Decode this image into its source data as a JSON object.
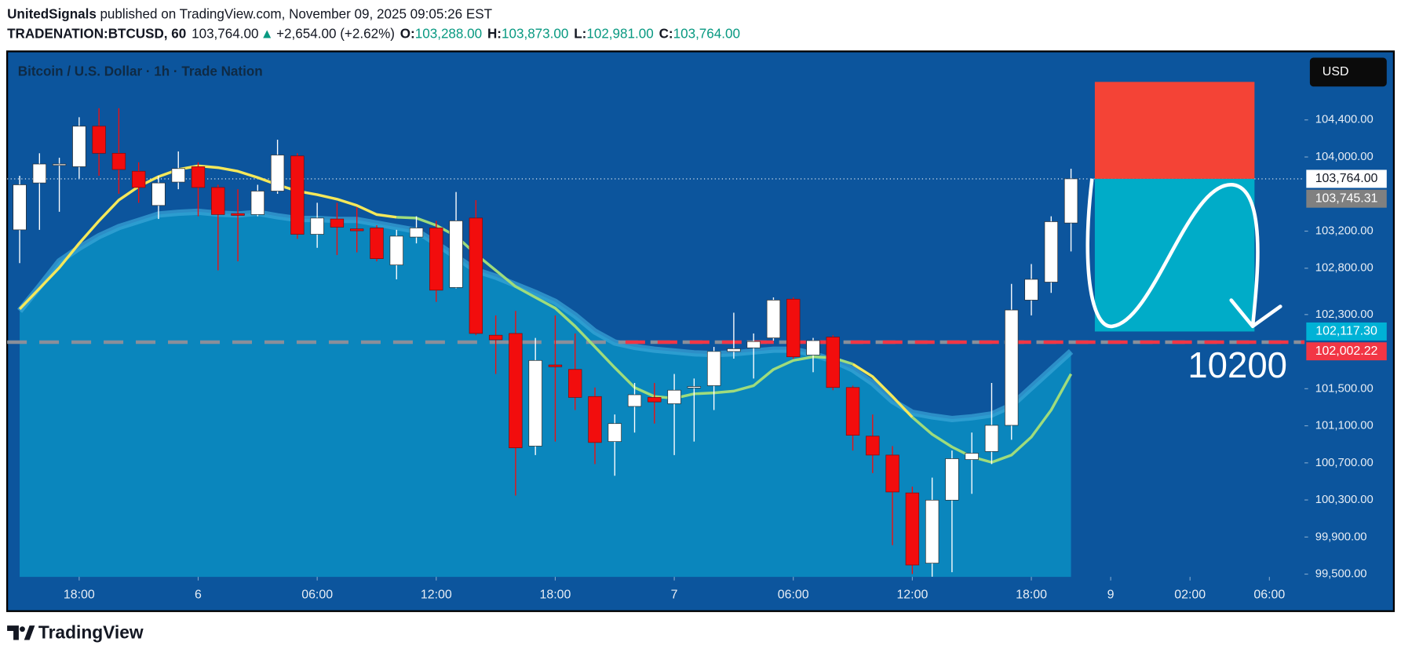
{
  "header": {
    "author": "UnitedSignals",
    "published": "published on TradingView.com, November 09, 2025 09:05:26 EST",
    "symbol": "TRADENATION:BTCUSD, 60",
    "price": "103,764.00",
    "arrow": "▲",
    "change": "+2,654.00 (+2.62%)",
    "ohlc": [
      [
        "O:",
        "103,288.00"
      ],
      [
        "H:",
        "103,873.00"
      ],
      [
        "L:",
        "102,981.00"
      ],
      [
        "C:",
        "103,764.00"
      ]
    ]
  },
  "footer": {
    "brand": "TradingView"
  },
  "chart_data": {
    "type": "candlestick",
    "title": "Bitcoin / U.S. Dollar · 1h · Trade Nation",
    "currency": "USD",
    "xlim": [
      -0.63,
      64.77
    ],
    "ylim": [
      99470,
      105110
    ],
    "xticks": [
      {
        "value": 3,
        "label": "18:00"
      },
      {
        "value": 9,
        "label": "6"
      },
      {
        "value": 15,
        "label": "06:00"
      },
      {
        "value": 21,
        "label": "12:00"
      },
      {
        "value": 27,
        "label": "18:00"
      },
      {
        "value": 33,
        "label": "7"
      },
      {
        "value": 39,
        "label": "06:00"
      },
      {
        "value": 45,
        "label": "12:00"
      },
      {
        "value": 51,
        "label": "18:00"
      },
      {
        "value": 55,
        "label": "9"
      },
      {
        "value": 59,
        "label": "02:00"
      },
      {
        "value": 63,
        "label": "06:00"
      }
    ],
    "yticks": [
      {
        "value": 104400,
        "label": "104,400.00"
      },
      {
        "value": 104000,
        "label": "104,000.00"
      },
      {
        "value": 103200,
        "label": "103,200.00"
      },
      {
        "value": 102800,
        "label": "102,800.00"
      },
      {
        "value": 102300,
        "label": "102,300.00"
      },
      {
        "value": 101500,
        "label": "101,500.00"
      },
      {
        "value": 101100,
        "label": "101,100.00"
      },
      {
        "value": 100700,
        "label": "100,700.00"
      },
      {
        "value": 100300,
        "label": "100,300.00"
      },
      {
        "value": 99900,
        "label": "99,900.00"
      },
      {
        "value": 99500,
        "label": "99,500.00"
      }
    ],
    "up_color": "#ffffff",
    "down_color": "#f20d0d",
    "open": [
      103214,
      103720,
      103914,
      103895,
      104332,
      104040,
      103846,
      103477,
      103729,
      103895,
      103671,
      103389,
      103379,
      103632,
      104011,
      103166,
      103331,
      103224,
      103234,
      102835,
      103136,
      103234,
      102592,
      103341,
      102077,
      102096,
      100881,
      101756,
      101708,
      101416,
      100930,
      101309,
      101406,
      101338,
      101513,
      101533,
      101902,
      101941,
      102048,
      102466,
      101863,
      102057,
      101513,
      100988,
      100784,
      100376,
      99618,
      100298,
      100736,
      100823,
      101105,
      102456,
      102650,
      103288
    ],
    "high": [
      103797,
      104040,
      103992,
      104429,
      104526,
      104526,
      103943,
      103797,
      104060,
      103943,
      103700,
      103652,
      103700,
      104186,
      104040,
      103506,
      103506,
      103457,
      103263,
      103214,
      103360,
      103311,
      103622,
      103535,
      102291,
      102339,
      102048,
      102291,
      102096,
      101513,
      101222,
      101562,
      101562,
      101659,
      101610,
      101951,
      102320,
      102096,
      102485,
      102485,
      102048,
      102077,
      101533,
      101222,
      100881,
      100444,
      100541,
      100833,
      101027,
      101562,
      102631,
      102845,
      103360,
      103873
    ],
    "low": [
      102855,
      103214,
      103409,
      103768,
      103797,
      103603,
      103506,
      103331,
      103652,
      103360,
      102777,
      102874,
      103360,
      103603,
      103117,
      103020,
      102942,
      102971,
      102874,
      102680,
      103068,
      102437,
      102582,
      102077,
      101659,
      100347,
      100784,
      100930,
      101270,
      100687,
      100561,
      101027,
      101124,
      100784,
      100930,
      101270,
      101824,
      101610,
      102019,
      101824,
      101678,
      101484,
      100833,
      100590,
      99812,
      99501,
      99472,
      99521,
      100366,
      100687,
      100949,
      102291,
      102534,
      102981
    ],
    "close": [
      103700,
      103924,
      103924,
      104332,
      104040,
      103865,
      103671,
      103720,
      103875,
      103671,
      103379,
      103370,
      103632,
      104021,
      103166,
      103341,
      103243,
      103204,
      102903,
      103146,
      103234,
      102563,
      103311,
      102096,
      102028,
      100862,
      101805,
      101737,
      101406,
      100920,
      101124,
      101435,
      101358,
      101484,
      101523,
      101902,
      101931,
      102009,
      102456,
      101844,
      102019,
      101513,
      100998,
      100784,
      100386,
      99598,
      100298,
      100745,
      100804,
      101105,
      102349,
      102680,
      103302,
      103764
    ],
    "band": {
      "color": "#0a86bd",
      "edge_color": "#3aa7d8",
      "values": [
        102339,
        102602,
        102874,
        103020,
        103146,
        103243,
        103311,
        103379,
        103398,
        103409,
        103389,
        103379,
        103398,
        103360,
        103331,
        103331,
        103321,
        103321,
        103282,
        103243,
        103204,
        103068,
        102923,
        102777,
        102709,
        102621,
        102534,
        102437,
        102291,
        102116,
        101999,
        101951,
        101921,
        101902,
        101882,
        101873,
        101882,
        101902,
        101921,
        101921,
        101873,
        101805,
        101708,
        101562,
        101368,
        101241,
        101202,
        101173,
        101192,
        101222,
        101319,
        101513,
        101708,
        101902
      ]
    },
    "series": [
      {
        "color": "#f5e85a",
        "values": [
          102359,
          102582,
          102806,
          103068,
          103311,
          103535,
          103681,
          103788,
          103865,
          103904,
          103885,
          103846,
          103778,
          103700,
          103632,
          103593,
          103545,
          103477,
          103379,
          103350,
          null,
          null,
          null,
          null,
          null,
          null,
          null,
          null,
          null,
          null,
          null,
          null,
          null,
          null,
          null,
          null,
          null,
          null,
          null,
          null,
          null,
          null,
          101766,
          101630,
          101416,
          101192,
          null,
          null,
          null,
          null,
          null,
          null,
          null,
          null
        ]
      },
      {
        "color": "#9fdc7c",
        "values": [
          null,
          null,
          null,
          null,
          null,
          null,
          null,
          null,
          null,
          null,
          null,
          null,
          null,
          null,
          null,
          null,
          null,
          null,
          null,
          103350,
          103341,
          103263,
          103146,
          102952,
          102777,
          102602,
          102485,
          102369,
          102174,
          101951,
          101727,
          101513,
          101416,
          101397,
          101445,
          101455,
          101474,
          101533,
          101708,
          101805,
          101844,
          101834,
          101766,
          null,
          null,
          101192,
          101008,
          100872,
          100765,
          100706,
          100784,
          100979,
          101270,
          101659
        ]
      }
    ],
    "price_labels": [
      {
        "value": 103764,
        "label": "103,764.00",
        "color": "#ffffff",
        "text_color": "#131722"
      },
      {
        "value": 103745.31,
        "label": "103,745.31",
        "color": "#808080",
        "text_color": "#ffffff"
      },
      {
        "value": 102117.3,
        "label": "102,117.30",
        "color": "#00b2d6",
        "text_color": "#ffffff"
      },
      {
        "value": 102002.22,
        "label": "102,002.22",
        "color": "#f23645",
        "text_color": "#ffffff"
      }
    ],
    "position": {
      "x": [
        54.2,
        62.25
      ],
      "stop": 104810,
      "entry": 103764,
      "target": 102117.3,
      "stop_color": "#f44336",
      "target_color": "#00acc8"
    },
    "annotation": "10200"
  }
}
